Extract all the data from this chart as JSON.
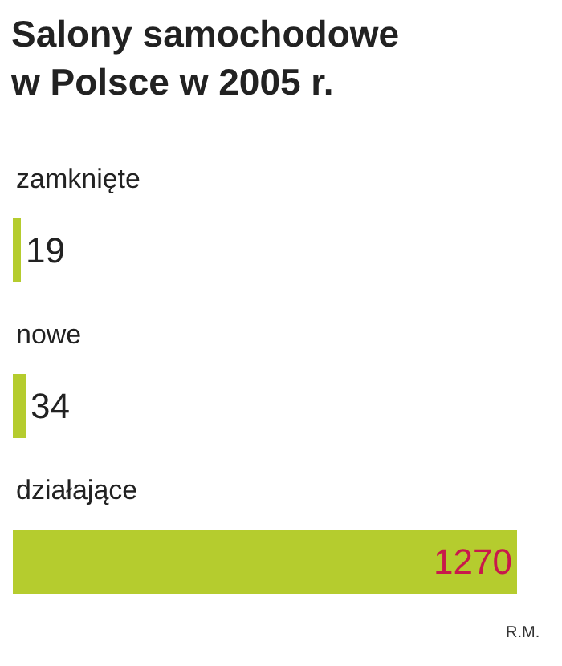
{
  "chart_data": {
    "type": "bar",
    "orientation": "horizontal",
    "title": "Salony samochodowe\nw Polsce w 2005 r.",
    "categories": [
      "zamknięte",
      "nowe",
      "działające"
    ],
    "values": [
      19,
      34,
      1270
    ],
    "color": "#b5cc2e",
    "tick_labels": false,
    "data_labels": true,
    "grid": false,
    "annotations": [
      "R.M."
    ]
  }
}
